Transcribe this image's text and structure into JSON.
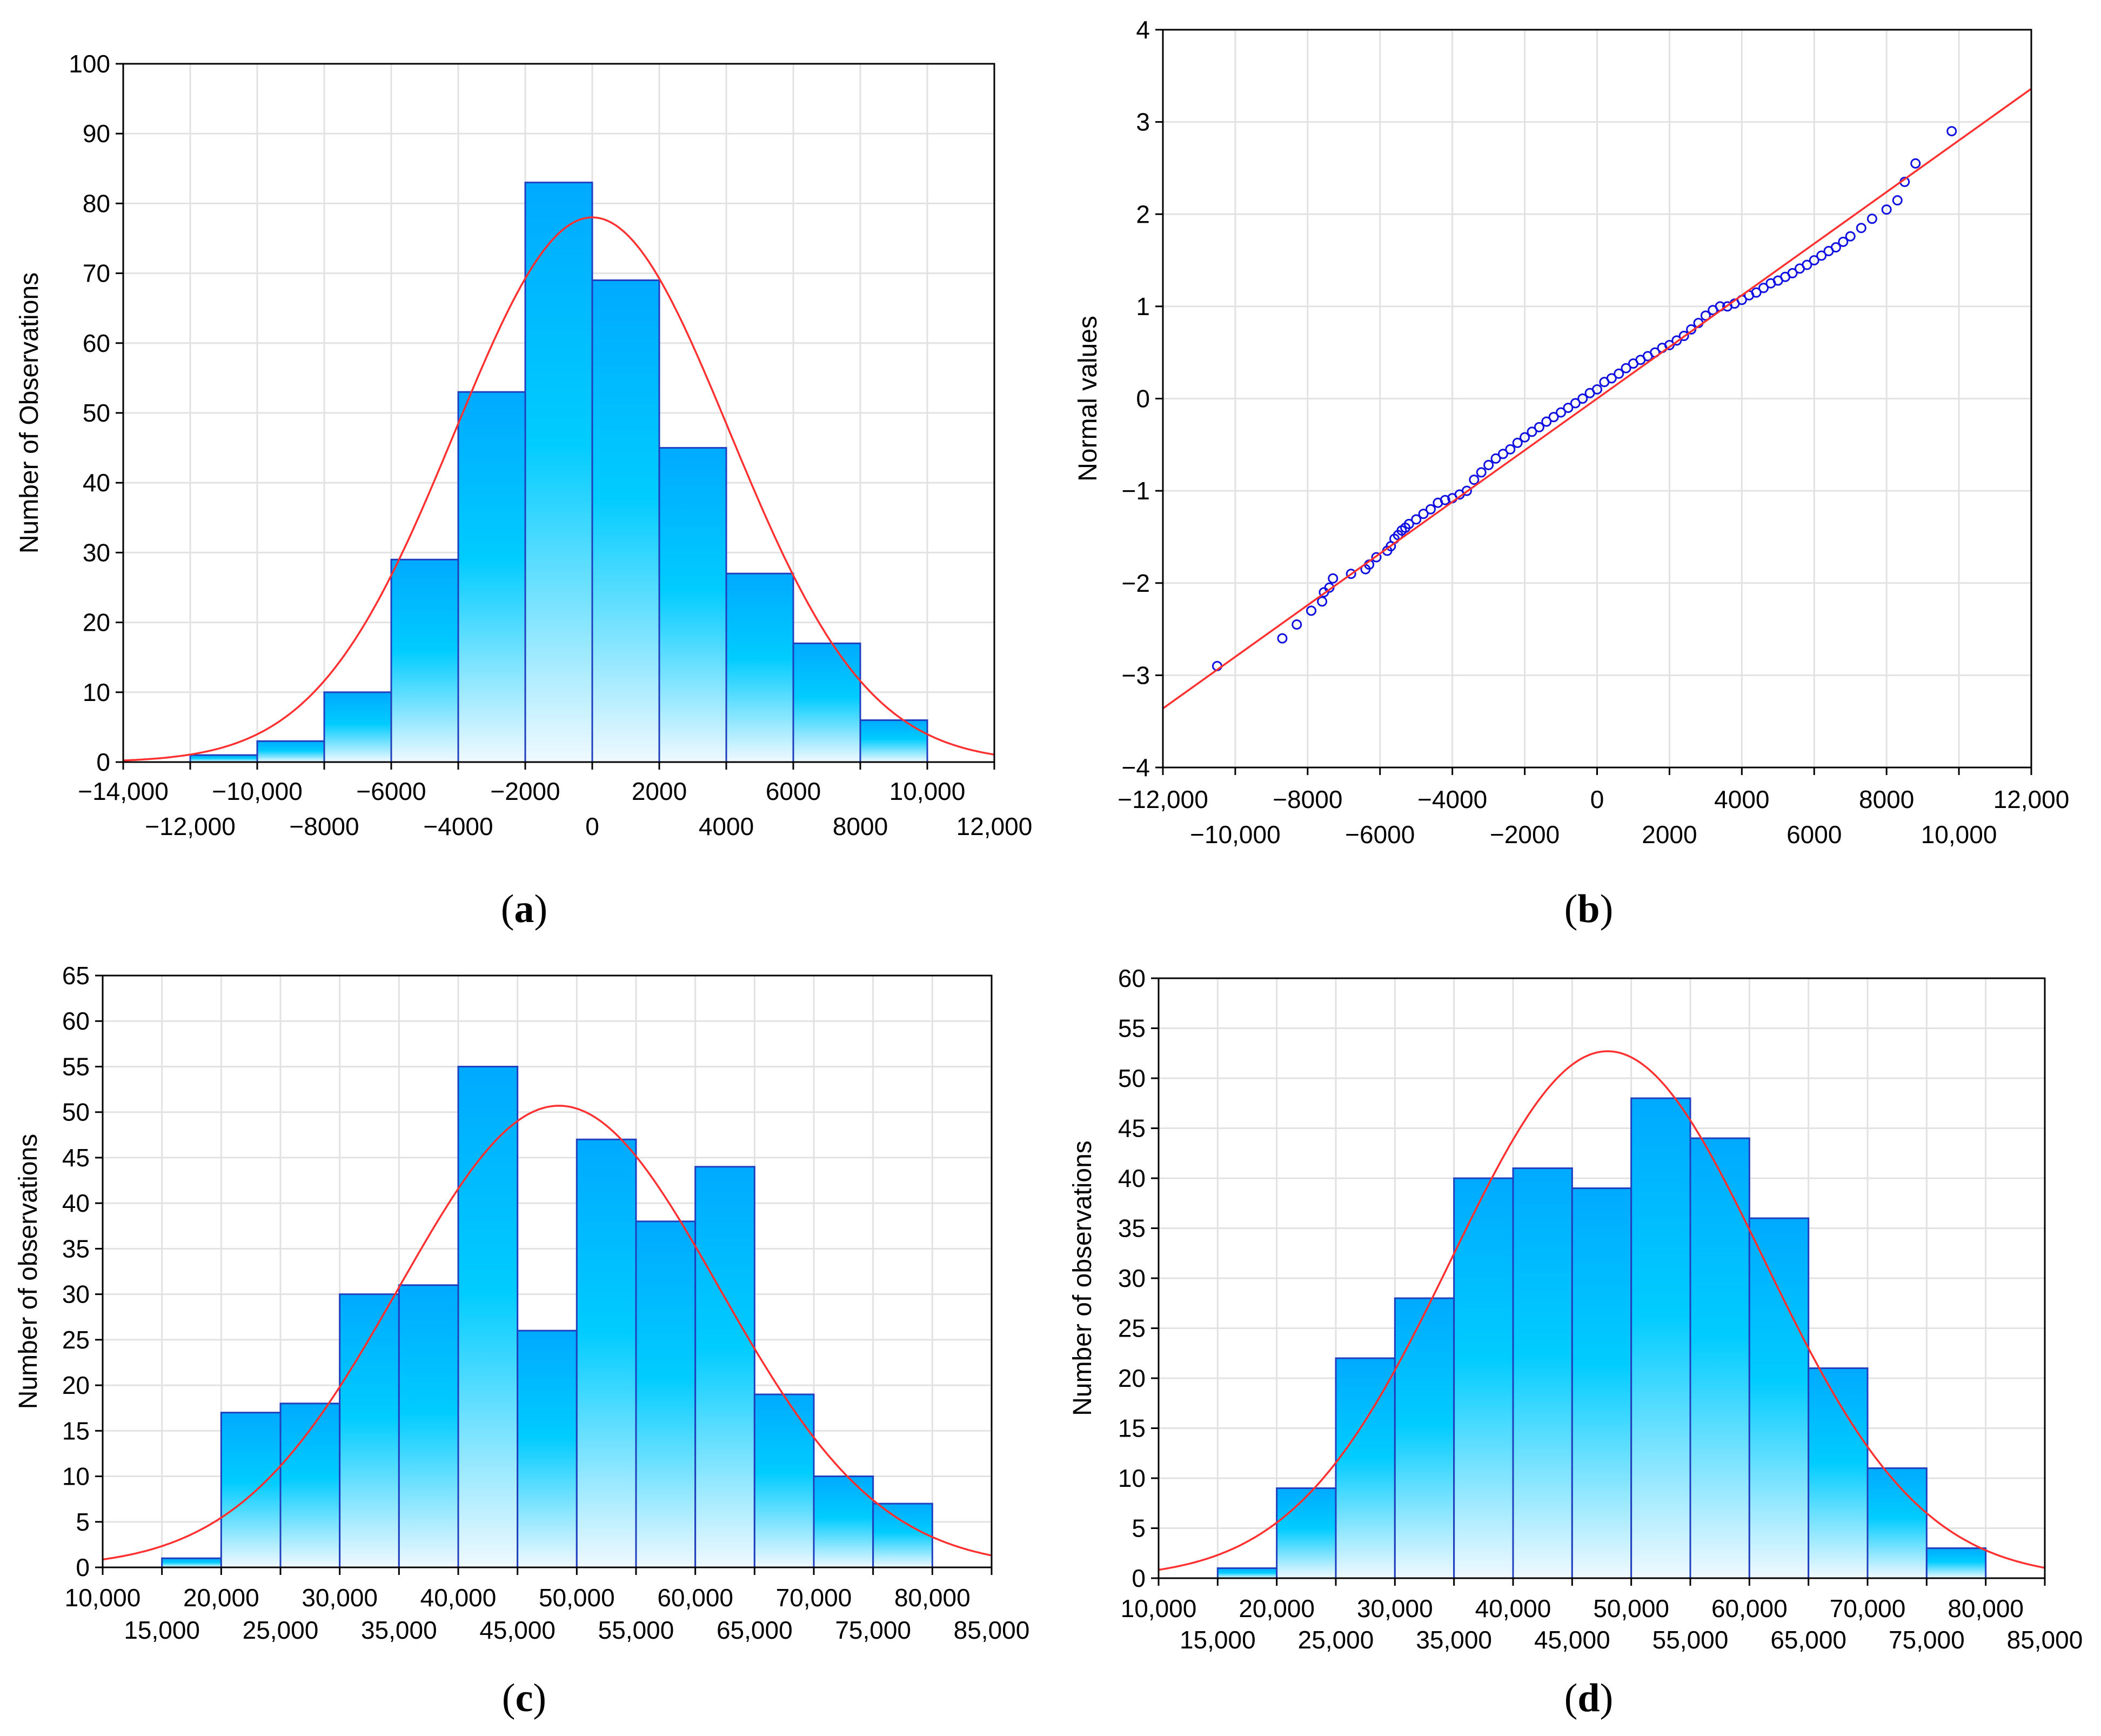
{
  "captions": {
    "a": {
      "open": "(",
      "letter": "a",
      "close": ")"
    },
    "b": {
      "open": "(",
      "letter": "b",
      "close": ")"
    },
    "c": {
      "open": "(",
      "letter": "c",
      "close": ")"
    },
    "d": {
      "open": "(",
      "letter": "d",
      "close": ")"
    }
  },
  "colors": {
    "bar_outline": "#1f3fbf",
    "curve": "#ff3030",
    "points": "#1010e0",
    "grid": "#e2e2e2",
    "bar_top": "#00aaff",
    "bar_mid": "#00ccff",
    "bar_bottom": "#f0f9ff"
  },
  "chart_data": [
    {
      "id": "a",
      "type": "bar",
      "ylabel": "Number of Observations",
      "xlim": [
        -14000,
        12000
      ],
      "ylim": [
        0,
        100
      ],
      "yticks": [
        0,
        10,
        20,
        30,
        40,
        50,
        60,
        70,
        80,
        90,
        100
      ],
      "xticks_top": [
        -14000,
        -10000,
        -6000,
        -2000,
        2000,
        6000,
        10000
      ],
      "xticks_top_labels": [
        "−14,000",
        "−10,000",
        "−6000",
        "−2000",
        "2000",
        "6000",
        "10,000"
      ],
      "xticks_bottom": [
        -12000,
        -8000,
        -4000,
        0,
        4000,
        8000,
        12000
      ],
      "xticks_bottom_labels": [
        "−12,000",
        "−8000",
        "−4000",
        "0",
        "4000",
        "8000",
        "12,000"
      ],
      "bins": [
        [
          -12000,
          -10000
        ],
        [
          -10000,
          -8000
        ],
        [
          -8000,
          -6000
        ],
        [
          -6000,
          -4000
        ],
        [
          -4000,
          -2000
        ],
        [
          -2000,
          0
        ],
        [
          0,
          2000
        ],
        [
          2000,
          4000
        ],
        [
          4000,
          6000
        ],
        [
          6000,
          8000
        ],
        [
          8000,
          10000
        ]
      ],
      "values": [
        1,
        3,
        10,
        29,
        53,
        83,
        69,
        45,
        27,
        17,
        6
      ],
      "normal_curve": {
        "mean": 0,
        "sd": 4100,
        "peak": 78
      }
    },
    {
      "id": "b",
      "type": "scatter",
      "ylabel": "Normal values",
      "xlim": [
        -12000,
        12000
      ],
      "ylim": [
        -4,
        4
      ],
      "yticks": [
        -4,
        -3,
        -2,
        -1,
        0,
        1,
        2,
        3,
        4
      ],
      "ytick_labels": [
        "−4",
        "−3",
        "−2",
        "−1",
        "0",
        "1",
        "2",
        "3",
        "4"
      ],
      "xticks_top": [
        -12000,
        -8000,
        -4000,
        0,
        4000,
        8000,
        12000
      ],
      "xticks_top_labels": [
        "−12,000",
        "−8000",
        "−4000",
        "0",
        "4000",
        "8000",
        "12,000"
      ],
      "xticks_bottom": [
        -10000,
        -6000,
        -2000,
        2000,
        6000,
        10000
      ],
      "xticks_bottom_labels": [
        "−10,000",
        "−6000",
        "−2000",
        "2000",
        "6000",
        "10,000"
      ],
      "reference_line": {
        "x": [
          -12000,
          12000
        ],
        "y": [
          -3.36,
          3.36
        ]
      },
      "points": {
        "x": [
          -10500,
          -8700,
          -8300,
          -7900,
          -7600,
          -7550,
          -7400,
          -7300,
          -6800,
          -6400,
          -6300,
          -6100,
          -5800,
          -5700,
          -5600,
          -5500,
          -5400,
          -5300,
          -5200,
          -5000,
          -4800,
          -4600,
          -4400,
          -4200,
          -4000,
          -3800,
          -3600,
          -3400,
          -3200,
          -3000,
          -2800,
          -2600,
          -2400,
          -2200,
          -2000,
          -1800,
          -1600,
          -1400,
          -1200,
          -1000,
          -800,
          -600,
          -400,
          -200,
          0,
          200,
          400,
          600,
          800,
          1000,
          1200,
          1400,
          1600,
          1800,
          2000,
          2200,
          2400,
          2600,
          2800,
          3000,
          3200,
          3400,
          3600,
          3800,
          4000,
          4200,
          4400,
          4600,
          4800,
          5000,
          5200,
          5400,
          5600,
          5800,
          6000,
          6200,
          6400,
          6600,
          6800,
          7000,
          7300,
          7600,
          8000,
          8300,
          8500,
          8800,
          9800
        ],
        "y": [
          -2.9,
          -2.6,
          -2.45,
          -2.3,
          -2.2,
          -2.1,
          -2.05,
          -1.95,
          -1.9,
          -1.85,
          -1.8,
          -1.72,
          -1.65,
          -1.6,
          -1.52,
          -1.48,
          -1.43,
          -1.4,
          -1.36,
          -1.31,
          -1.25,
          -1.2,
          -1.13,
          -1.1,
          -1.08,
          -1.04,
          -1.0,
          -0.88,
          -0.8,
          -0.72,
          -0.65,
          -0.6,
          -0.55,
          -0.48,
          -0.42,
          -0.36,
          -0.31,
          -0.25,
          -0.2,
          -0.15,
          -0.1,
          -0.05,
          0.0,
          0.06,
          0.1,
          0.18,
          0.22,
          0.27,
          0.33,
          0.38,
          0.42,
          0.46,
          0.5,
          0.55,
          0.58,
          0.63,
          0.68,
          0.75,
          0.82,
          0.9,
          0.96,
          1.0,
          1.0,
          1.03,
          1.07,
          1.12,
          1.15,
          1.2,
          1.25,
          1.28,
          1.32,
          1.36,
          1.41,
          1.45,
          1.5,
          1.55,
          1.6,
          1.64,
          1.7,
          1.76,
          1.85,
          1.95,
          2.05,
          2.15,
          2.35,
          2.55,
          2.9
        ]
      }
    },
    {
      "id": "c",
      "type": "bar",
      "ylabel": "Number of observations",
      "xlim": [
        10000,
        85000
      ],
      "ylim": [
        0,
        65
      ],
      "yticks": [
        0,
        5,
        10,
        15,
        20,
        25,
        30,
        35,
        40,
        45,
        50,
        55,
        60,
        65
      ],
      "xticks_top": [
        10000,
        20000,
        30000,
        40000,
        50000,
        60000,
        70000,
        80000
      ],
      "xticks_top_labels": [
        "10,000",
        "20,000",
        "30,000",
        "40,000",
        "50,000",
        "60,000",
        "70,000",
        "80,000"
      ],
      "xticks_bottom": [
        15000,
        25000,
        35000,
        45000,
        55000,
        65000,
        75000,
        85000
      ],
      "xticks_bottom_labels": [
        "15,000",
        "25,000",
        "35,000",
        "45,000",
        "55,000",
        "65,000",
        "75,000",
        "85,000"
      ],
      "bins": [
        [
          15000,
          20000
        ],
        [
          20000,
          25000
        ],
        [
          25000,
          30000
        ],
        [
          30000,
          35000
        ],
        [
          35000,
          40000
        ],
        [
          40000,
          45000
        ],
        [
          45000,
          50000
        ],
        [
          50000,
          55000
        ],
        [
          55000,
          60000
        ],
        [
          60000,
          65000
        ],
        [
          65000,
          70000
        ],
        [
          70000,
          75000
        ],
        [
          75000,
          80000
        ]
      ],
      "values": [
        1,
        17,
        18,
        30,
        31,
        55,
        26,
        47,
        38,
        44,
        19,
        10,
        7
      ],
      "normal_curve": {
        "mean": 48500,
        "sd": 13500,
        "peak": 50.7
      }
    },
    {
      "id": "d",
      "type": "bar",
      "ylabel": "Number of observations",
      "xlim": [
        10000,
        85000
      ],
      "ylim": [
        0,
        60
      ],
      "yticks": [
        0,
        5,
        10,
        15,
        20,
        25,
        30,
        35,
        40,
        45,
        50,
        55,
        60
      ],
      "xticks_top": [
        10000,
        20000,
        30000,
        40000,
        50000,
        60000,
        70000,
        80000
      ],
      "xticks_top_labels": [
        "10,000",
        "20,000",
        "30,000",
        "40,000",
        "50,000",
        "60,000",
        "70,000",
        "80,000"
      ],
      "xticks_bottom": [
        15000,
        25000,
        35000,
        45000,
        55000,
        65000,
        75000,
        85000
      ],
      "xticks_bottom_labels": [
        "15,000",
        "25,000",
        "35,000",
        "45,000",
        "55,000",
        "65,000",
        "75,000",
        "85,000"
      ],
      "bins": [
        [
          15000,
          20000
        ],
        [
          20000,
          25000
        ],
        [
          25000,
          30000
        ],
        [
          30000,
          35000
        ],
        [
          35000,
          40000
        ],
        [
          40000,
          45000
        ],
        [
          45000,
          50000
        ],
        [
          50000,
          55000
        ],
        [
          55000,
          60000
        ],
        [
          60000,
          65000
        ],
        [
          65000,
          70000
        ],
        [
          70000,
          75000
        ],
        [
          75000,
          80000
        ]
      ],
      "values": [
        1,
        9,
        22,
        28,
        40,
        41,
        39,
        48,
        44,
        36,
        21,
        11,
        3
      ],
      "normal_curve": {
        "mean": 48000,
        "sd": 13200,
        "peak": 52.7
      }
    }
  ]
}
